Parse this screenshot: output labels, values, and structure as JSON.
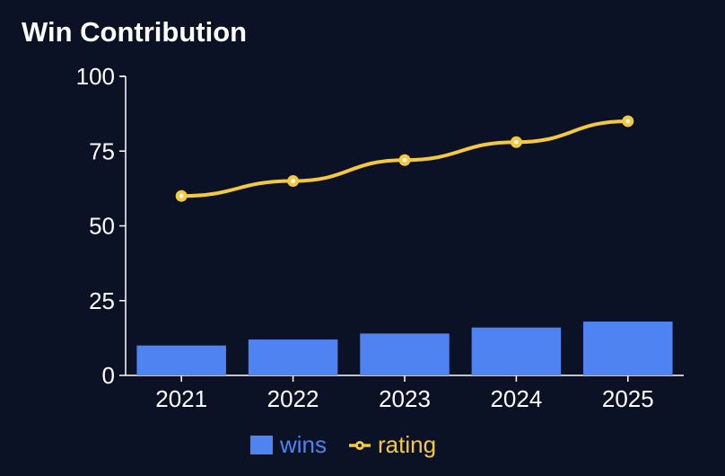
{
  "title": "Win Contribution",
  "colors": {
    "background": "#0b1226",
    "wins": "#4f83f1",
    "rating": "#f5c842",
    "axis": "#ffffff"
  },
  "chart_data": {
    "type": "bar",
    "title": "Win Contribution",
    "categories": [
      "2021",
      "2022",
      "2023",
      "2024",
      "2025"
    ],
    "ylim": [
      0,
      100
    ],
    "yticks": [
      "0",
      "25",
      "50",
      "75",
      "100"
    ],
    "xlabel": "",
    "ylabel": "",
    "grid": false,
    "legend_position": "bottom-center",
    "series": [
      {
        "name": "wins",
        "type": "bar",
        "values": [
          10,
          12,
          14,
          16,
          18
        ]
      },
      {
        "name": "rating",
        "type": "line",
        "values": [
          60,
          65,
          72,
          78,
          85
        ]
      }
    ]
  }
}
